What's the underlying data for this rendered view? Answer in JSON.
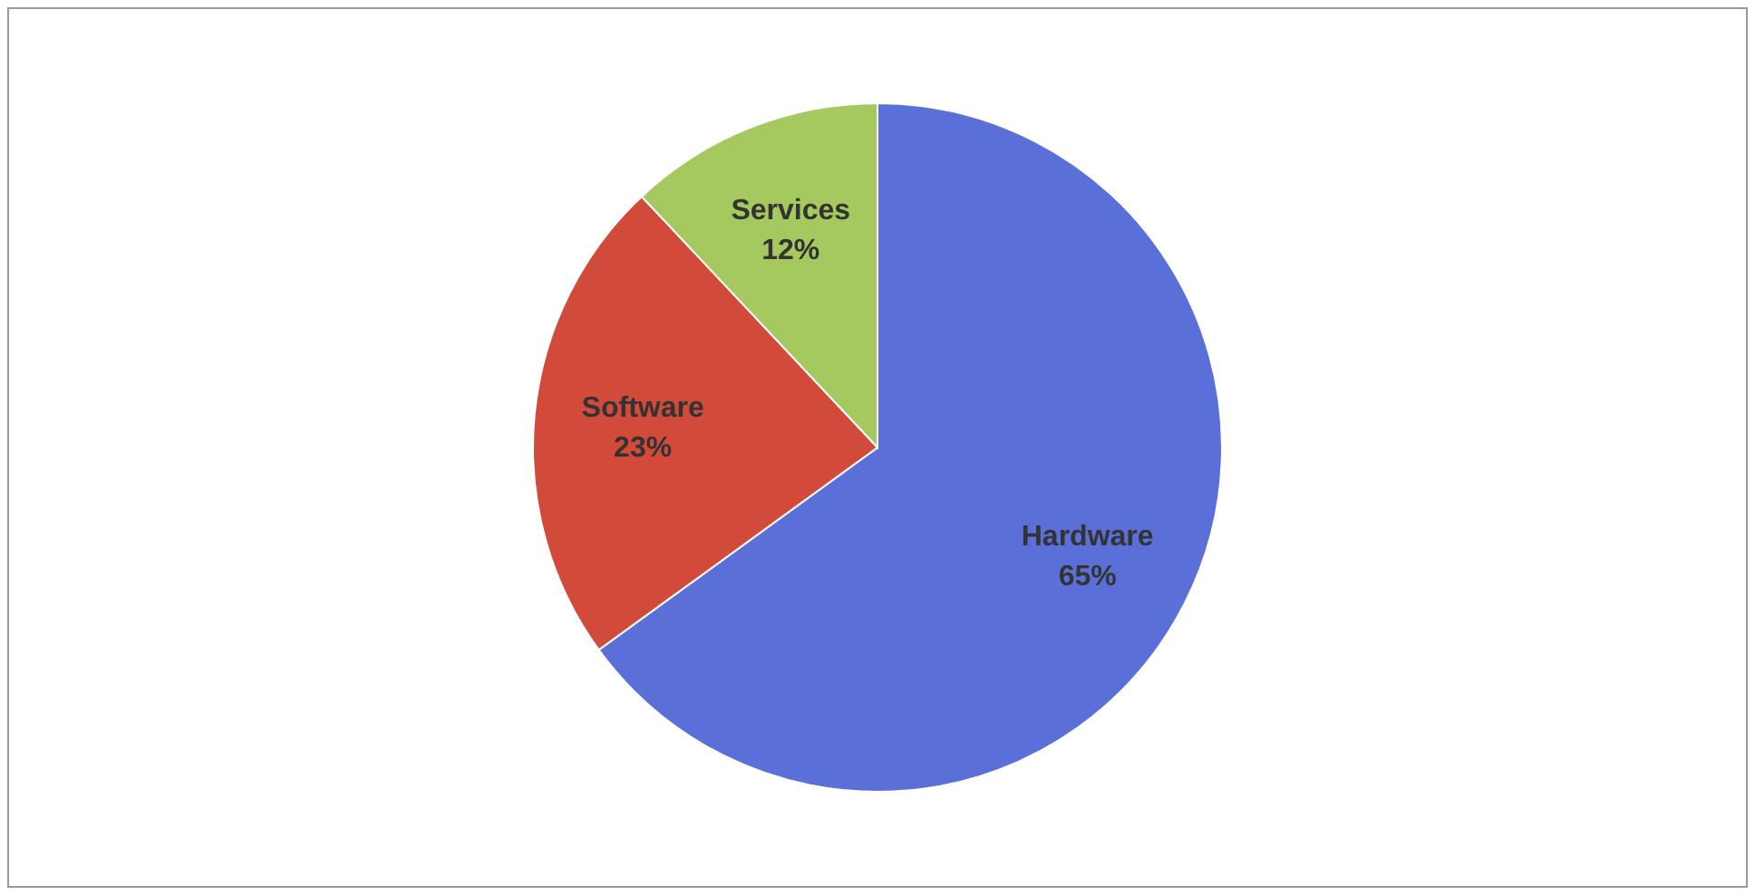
{
  "chart_data": {
    "type": "pie",
    "categories": [
      "Hardware",
      "Software",
      "Services"
    ],
    "values": [
      65,
      23,
      12
    ],
    "colors": [
      "#5b6fd9",
      "#d24a3a",
      "#a6c95f"
    ],
    "value_labels": [
      "65%",
      "23%",
      "12%"
    ],
    "legend": false
  }
}
